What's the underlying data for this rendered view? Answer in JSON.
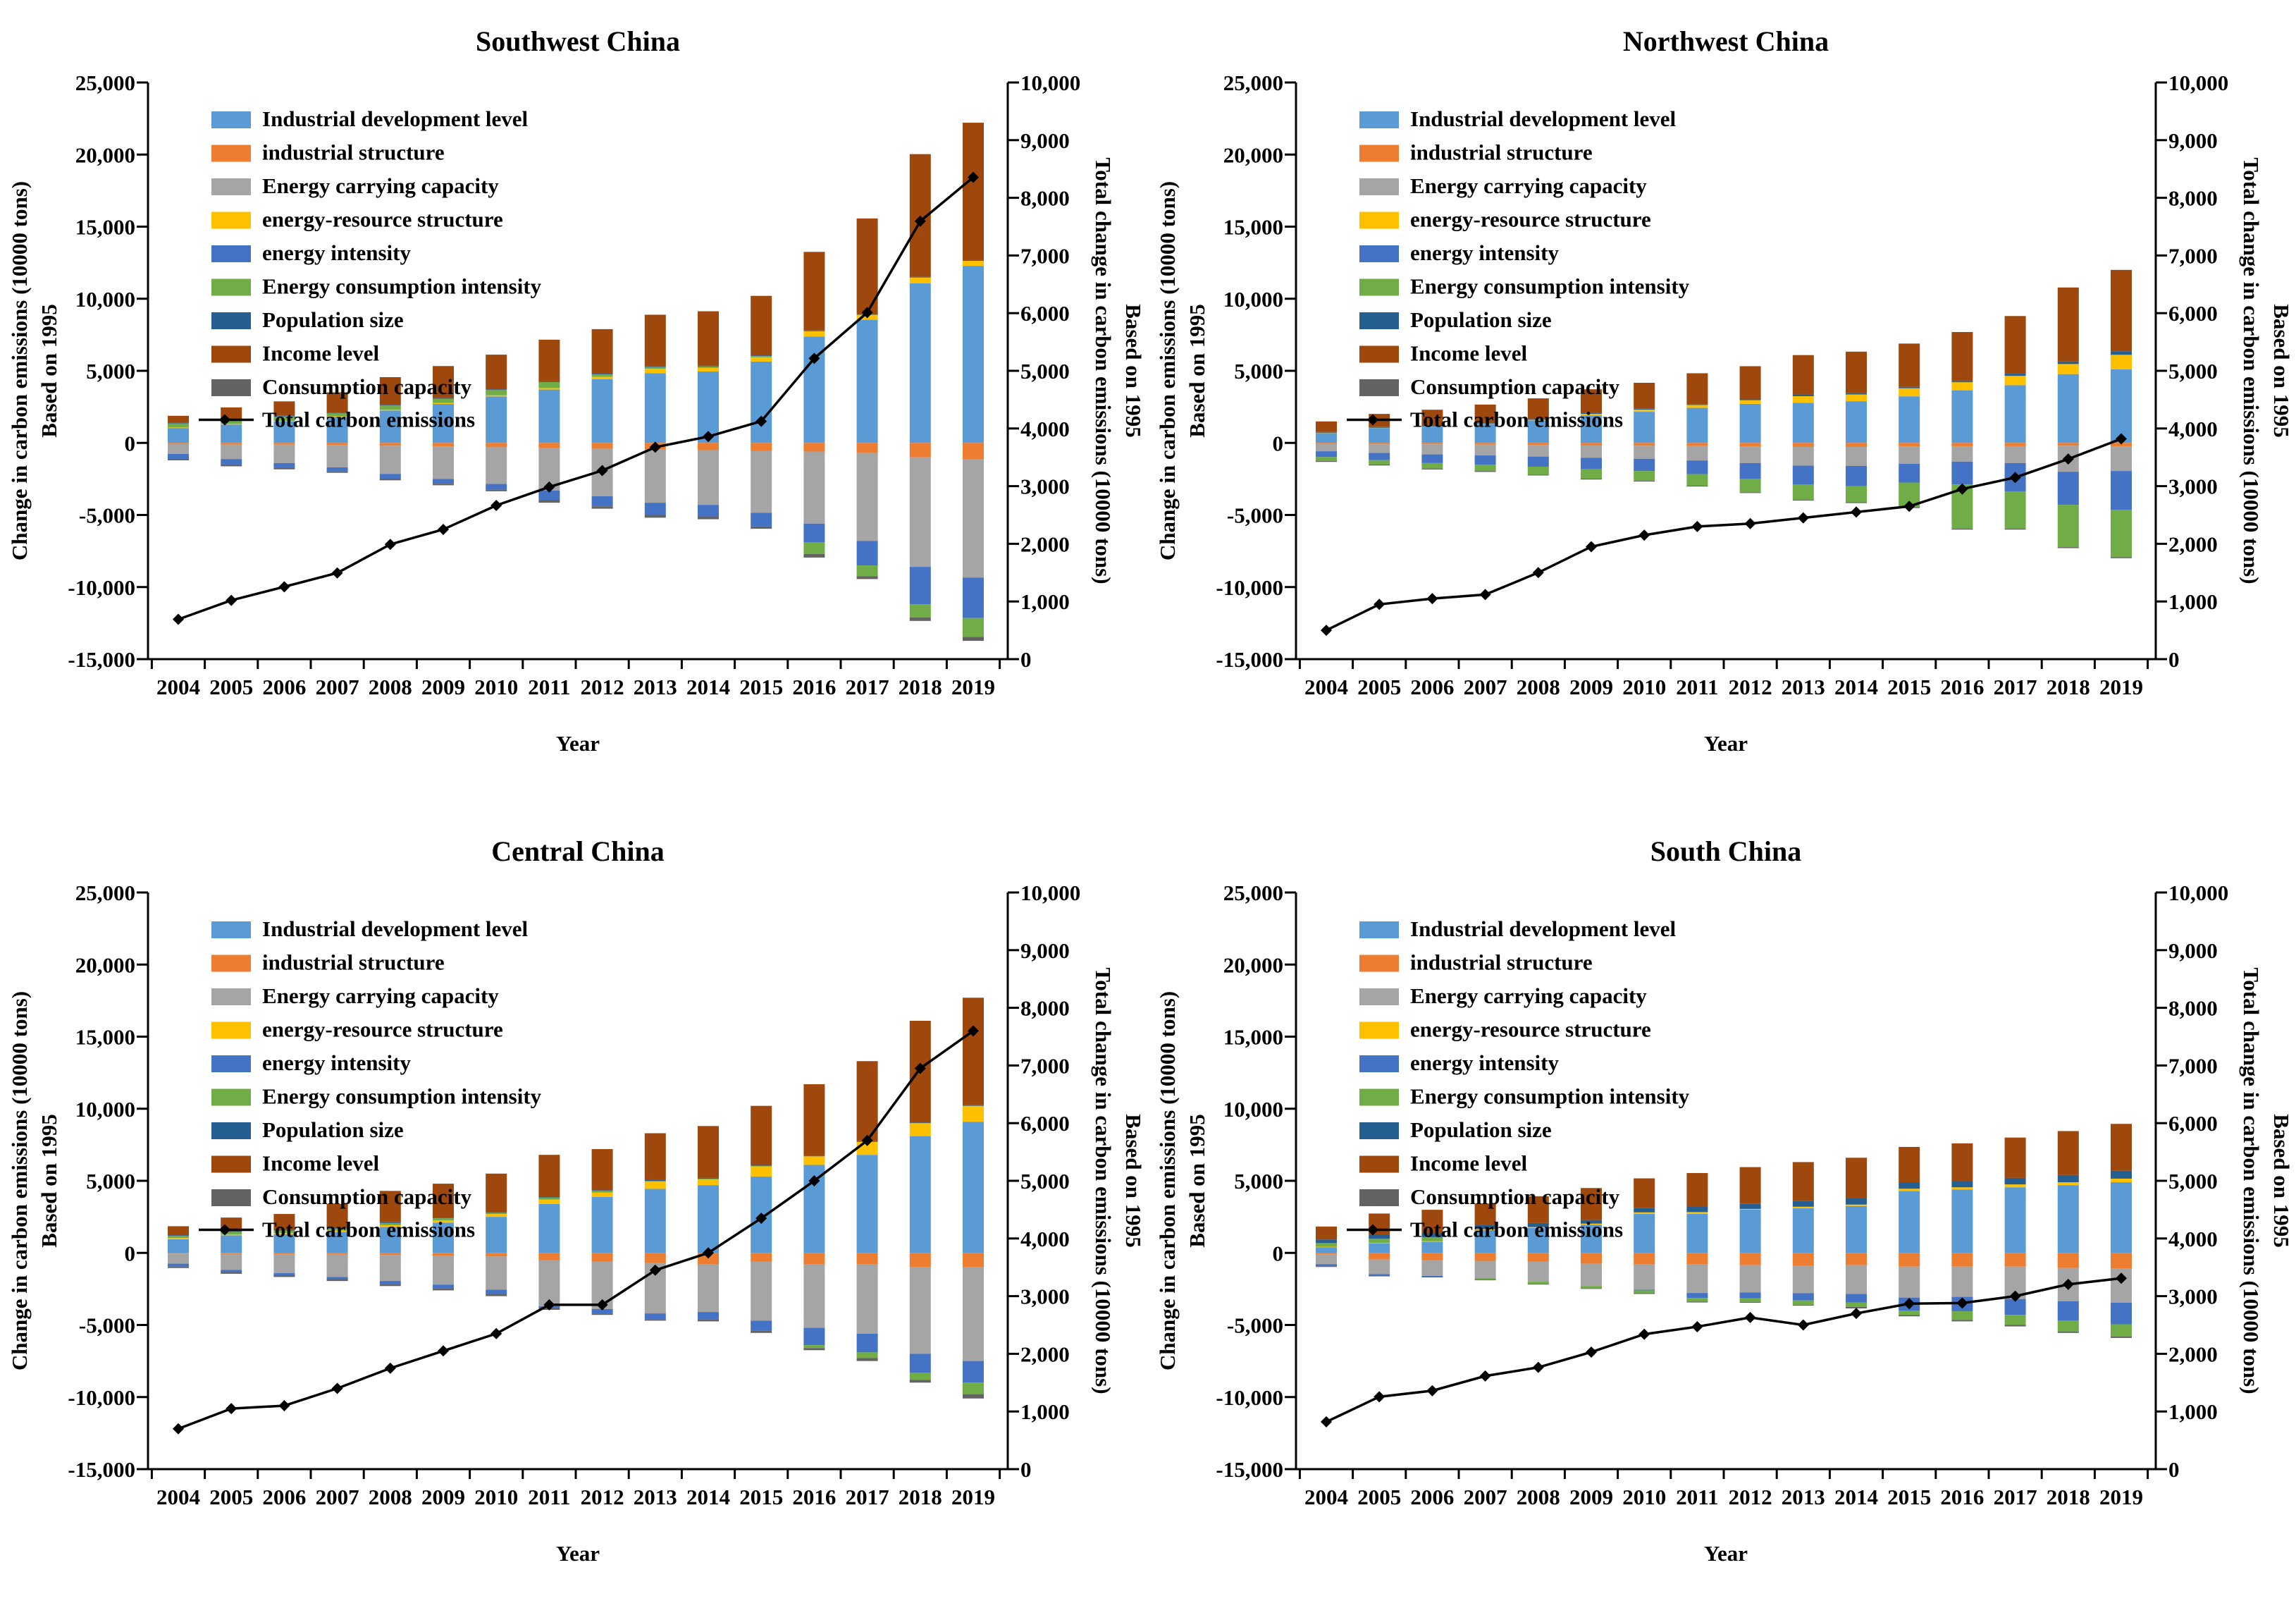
{
  "page": {
    "background": "#ffffff"
  },
  "colors": {
    "industrial_development_level": "#5B9BD5",
    "industrial_structure": "#ED7D31",
    "energy_carrying_capacity": "#A5A5A5",
    "energy_resource_structure": "#FFC000",
    "energy_intensity": "#4472C4",
    "energy_consumption_intensity": "#70AD47",
    "population_size": "#255E91",
    "income_level": "#9E480E",
    "consumption_capacity": "#636363",
    "total_line": "#000000",
    "axis": "#000000"
  },
  "axes": {
    "left_title_line1": "Change in carbon emissions (10000 tons)",
    "left_title_line2": "Based on 1995",
    "right_title_line1": "Total change in carbon emissions (10000 tons)",
    "right_title_line2": "Based on 1995",
    "x_title": "Year",
    "left_min": -15000,
    "left_max": 25000,
    "left_step": 5000,
    "right_min": 0,
    "right_max": 10000,
    "right_step": 1000,
    "left_tick_labels": [
      "25,000",
      "20,000",
      "15,000",
      "10,000",
      "5,000",
      "0",
      "-5,000",
      "-10,000",
      "-15,000"
    ],
    "right_tick_labels": [
      "10,000",
      "9,000",
      "8,000",
      "7,000",
      "6,000",
      "5,000",
      "4,000",
      "3,000",
      "2,000",
      "1,000",
      "0"
    ]
  },
  "legend_line_label": "Total carbon emissions",
  "series_names": [
    "Industrial development level",
    "industrial structure",
    "Energy carrying capacity",
    "energy-resource structure",
    "energy intensity",
    "Energy consumption intensity",
    "Population size",
    "Income level",
    "Consumption capacity"
  ],
  "series_color_keys": [
    "industrial_development_level",
    "industrial_structure",
    "energy_carrying_capacity",
    "energy_resource_structure",
    "energy_intensity",
    "energy_consumption_intensity",
    "population_size",
    "income_level",
    "consumption_capacity"
  ],
  "chart_data": [
    {
      "type": "bar",
      "title": "Southwest China",
      "categories": [
        2004,
        2005,
        2006,
        2007,
        2008,
        2009,
        2010,
        2011,
        2012,
        2013,
        2014,
        2015,
        2016,
        2017,
        2018,
        2019
      ],
      "xlabel": "Year",
      "ylabel_left": "Change in carbon emissions (10000 tons) Based on 1995",
      "ylabel_right": "Total change in carbon emissions (10000 tons) Based on 1995",
      "ylim_left": [
        -15000,
        25000
      ],
      "ylim_right": [
        0,
        10000
      ],
      "grid": false,
      "legend_position": "top-left-inside",
      "series": [
        {
          "name": "Industrial development level",
          "values": [
            1040,
            1280,
            1490,
            1800,
            2250,
            2700,
            3220,
            3700,
            4430,
            4840,
            4950,
            5640,
            7370,
            8540,
            11070,
            12280
          ]
        },
        {
          "name": "industrial structure",
          "values": [
            -60,
            -120,
            -120,
            -150,
            -200,
            -250,
            -300,
            -350,
            -400,
            -450,
            -500,
            -550,
            -600,
            -700,
            -1000,
            -1150
          ]
        },
        {
          "name": "Energy carrying capacity",
          "values": [
            -700,
            -1000,
            -1280,
            -1550,
            -1950,
            -2250,
            -2550,
            -2950,
            -3300,
            -3700,
            -3800,
            -4300,
            -5000,
            -6100,
            -7600,
            -8200
          ]
        },
        {
          "name": "energy-resource structure",
          "values": [
            30,
            40,
            40,
            50,
            60,
            70,
            80,
            100,
            150,
            300,
            250,
            300,
            380,
            350,
            400,
            350
          ]
        },
        {
          "name": "energy intensity",
          "values": [
            -350,
            -380,
            -320,
            -280,
            -330,
            -330,
            -400,
            -650,
            -700,
            -850,
            -800,
            -950,
            -1300,
            -1700,
            -2600,
            -2800
          ]
        },
        {
          "name": "Energy consumption intensity",
          "values": [
            280,
            250,
            300,
            200,
            280,
            300,
            370,
            420,
            170,
            120,
            100,
            80,
            -800,
            -750,
            -900,
            -1300
          ]
        },
        {
          "name": "Population size",
          "values": [
            50,
            50,
            50,
            50,
            50,
            50,
            50,
            50,
            50,
            50,
            50,
            50,
            50,
            50,
            50,
            50
          ]
        },
        {
          "name": "Income level",
          "values": [
            480,
            840,
            1000,
            1410,
            1920,
            2210,
            2400,
            2890,
            3090,
            3580,
            3780,
            4130,
            5450,
            6630,
            8510,
            9530
          ]
        },
        {
          "name": "Consumption capacity",
          "values": [
            -100,
            -125,
            -115,
            -95,
            -115,
            -110,
            -105,
            -200,
            -165,
            -190,
            -195,
            -155,
            -255,
            -195,
            -250,
            -280
          ]
        }
      ],
      "line_series": {
        "name": "Total carbon emissions",
        "axis": "right",
        "values": [
          690,
          1020,
          1255,
          1495,
          1990,
          2250,
          2665,
          2985,
          3270,
          3675,
          3860,
          4125,
          5215,
          6010,
          7595,
          8355
        ]
      }
    },
    {
      "type": "bar",
      "title": "Northwest China",
      "categories": [
        2004,
        2005,
        2006,
        2007,
        2008,
        2009,
        2010,
        2011,
        2012,
        2013,
        2014,
        2015,
        2016,
        2017,
        2018,
        2019
      ],
      "xlabel": "Year",
      "ylabel_left": "Change in carbon emissions (10000 tons) Based on 1995",
      "ylabel_right": "Total change in carbon emissions (10000 tons) Based on 1995",
      "ylim_left": [
        -15000,
        25000
      ],
      "ylim_right": [
        0,
        10000
      ],
      "grid": false,
      "legend_position": "top-left-inside",
      "series": [
        {
          "name": "Industrial development level",
          "values": [
            700,
            1040,
            1110,
            1290,
            1565,
            1910,
            2160,
            2430,
            2710,
            2780,
            2890,
            3230,
            3650,
            4000,
            4770,
            5110
          ]
        },
        {
          "name": "industrial structure",
          "values": [
            -80,
            -100,
            -100,
            -120,
            -150,
            -180,
            -200,
            -220,
            -250,
            -280,
            -280,
            -250,
            -250,
            -230,
            -200,
            -250
          ]
        },
        {
          "name": "Energy carrying capacity",
          "values": [
            -500,
            -600,
            -700,
            -750,
            -800,
            -850,
            -900,
            -1000,
            -1150,
            -1300,
            -1320,
            -1200,
            -1050,
            -1170,
            -1800,
            -1700
          ]
        },
        {
          "name": "energy-resource structure",
          "values": [
            30,
            30,
            40,
            50,
            60,
            100,
            150,
            200,
            250,
            460,
            470,
            560,
            560,
            650,
            700,
            1000
          ]
        },
        {
          "name": "energy intensity",
          "values": [
            -400,
            -500,
            -600,
            -650,
            -700,
            -800,
            -850,
            -950,
            -1100,
            -1310,
            -1400,
            -1300,
            -1580,
            -1960,
            -2300,
            -2700
          ]
        },
        {
          "name": "Energy consumption intensity",
          "values": [
            -280,
            -300,
            -380,
            -430,
            -550,
            -650,
            -670,
            -800,
            -930,
            -1050,
            -1120,
            -1700,
            -3070,
            -2590,
            -2930,
            -3280
          ]
        },
        {
          "name": "Population size",
          "values": [
            30,
            30,
            30,
            30,
            30,
            60,
            60,
            60,
            60,
            100,
            90,
            100,
            90,
            150,
            180,
            250
          ]
        },
        {
          "name": "Income level",
          "values": [
            730,
            910,
            1120,
            1290,
            1435,
            1650,
            1800,
            2140,
            2300,
            2750,
            2880,
            3000,
            3390,
            4000,
            5130,
            5640
          ]
        },
        {
          "name": "Consumption capacity",
          "values": [
            -60,
            -65,
            -65,
            -65,
            -60,
            -60,
            -60,
            -55,
            -50,
            -60,
            -55,
            -70,
            -65,
            -65,
            -70,
            -70
          ]
        }
      ],
      "line_series": {
        "name": "Total carbon emissions",
        "axis": "right",
        "values": [
          500,
          950,
          1050,
          1120,
          1500,
          1950,
          2150,
          2300,
          2350,
          2450,
          2550,
          2650,
          2950,
          3150,
          3470,
          3820
        ]
      }
    },
    {
      "type": "bar",
      "title": "Central China",
      "categories": [
        2004,
        2005,
        2006,
        2007,
        2008,
        2009,
        2010,
        2011,
        2012,
        2013,
        2014,
        2015,
        2016,
        2017,
        2018,
        2019
      ],
      "xlabel": "Year",
      "ylabel_left": "Change in carbon emissions (10000 tons) Based on 1995",
      "ylabel_right": "Total change in carbon emissions (10000 tons) Based on 1995",
      "ylim_left": [
        -15000,
        25000
      ],
      "ylim_right": [
        0,
        10000
      ],
      "grid": false,
      "legend_position": "top-left-inside",
      "series": [
        {
          "name": "Industrial development level",
          "values": [
            950,
            1220,
            1300,
            1450,
            1800,
            2100,
            2500,
            3400,
            3880,
            4440,
            4700,
            5300,
            6100,
            6800,
            8100,
            9100
          ]
        },
        {
          "name": "industrial structure",
          "values": [
            -50,
            -80,
            -100,
            -120,
            -150,
            -200,
            -250,
            -500,
            -600,
            -700,
            -800,
            -600,
            -800,
            -800,
            -1000,
            -1000
          ]
        },
        {
          "name": "Energy carrying capacity",
          "values": [
            -700,
            -1100,
            -1300,
            -1550,
            -1800,
            -2000,
            -2300,
            -3200,
            -3300,
            -3500,
            -3300,
            -4100,
            -4400,
            -4800,
            -6000,
            -6500
          ]
        },
        {
          "name": "energy-resource structure",
          "values": [
            80,
            60,
            80,
            100,
            120,
            150,
            200,
            300,
            300,
            500,
            400,
            700,
            600,
            900,
            900,
            1100
          ]
        },
        {
          "name": "energy intensity",
          "values": [
            -200,
            -150,
            -150,
            -150,
            -200,
            -250,
            -300,
            -150,
            -300,
            -400,
            -500,
            -700,
            -1200,
            -1300,
            -1300,
            -1500
          ]
        },
        {
          "name": "Energy consumption intensity",
          "values": [
            150,
            180,
            170,
            120,
            150,
            150,
            80,
            150,
            120,
            60,
            50,
            50,
            -200,
            -400,
            -500,
            -800
          ]
        },
        {
          "name": "Population size",
          "values": [
            50,
            50,
            50,
            50,
            50,
            50,
            50,
            50,
            50,
            50,
            50,
            50,
            50,
            50,
            50,
            50
          ]
        },
        {
          "name": "Income level",
          "values": [
            620,
            940,
            1100,
            1680,
            2180,
            2350,
            2670,
            2900,
            2850,
            3250,
            3600,
            4100,
            4950,
            5550,
            7050,
            7450
          ]
        },
        {
          "name": "Consumption capacity",
          "values": [
            -100,
            -120,
            -120,
            -130,
            -150,
            -150,
            -150,
            -100,
            -100,
            -100,
            -150,
            -150,
            -150,
            -200,
            -200,
            -300
          ]
        }
      ],
      "line_series": {
        "name": "Total carbon emissions",
        "axis": "right",
        "values": [
          700,
          1050,
          1100,
          1400,
          1750,
          2050,
          2350,
          2850,
          2850,
          3450,
          3750,
          4350,
          5000,
          5700,
          6950,
          7600
        ]
      }
    },
    {
      "type": "bar",
      "title": "South China",
      "categories": [
        2004,
        2005,
        2006,
        2007,
        2008,
        2009,
        2010,
        2011,
        2012,
        2013,
        2014,
        2015,
        2016,
        2017,
        2018,
        2019
      ],
      "xlabel": "Year",
      "ylabel_left": "Change in carbon emissions (10000 tons) Based on 1995",
      "ylabel_right": "Total change in carbon emissions (10000 tons) Based on 1995",
      "ylim_left": [
        -15000,
        25000
      ],
      "ylim_right": [
        0,
        10000
      ],
      "grid": false,
      "legend_position": "top-left-inside",
      "series": [
        {
          "name": "Industrial development level",
          "values": [
            400,
            670,
            770,
            1590,
            1730,
            1950,
            2710,
            2710,
            3000,
            3100,
            3250,
            4300,
            4400,
            4550,
            4700,
            4900
          ]
        },
        {
          "name": "industrial structure",
          "values": [
            -100,
            -460,
            -500,
            -550,
            -600,
            -750,
            -800,
            -800,
            -850,
            -900,
            -850,
            -950,
            -950,
            -950,
            -1050,
            -1100
          ]
        },
        {
          "name": "Energy carrying capacity",
          "values": [
            -680,
            -1020,
            -1100,
            -1200,
            -1400,
            -1550,
            -1750,
            -1980,
            -1900,
            -1900,
            -2000,
            -2150,
            -2100,
            -2250,
            -2300,
            -2350
          ]
        },
        {
          "name": "energy-resource structure",
          "values": [
            30,
            30,
            40,
            50,
            60,
            80,
            100,
            120,
            50,
            100,
            100,
            150,
            150,
            200,
            200,
            250
          ]
        },
        {
          "name": "energy intensity",
          "values": [
            -150,
            -100,
            -50,
            0,
            0,
            0,
            -50,
            -350,
            -400,
            -500,
            -600,
            -900,
            -1000,
            -1100,
            -1350,
            -1500
          ]
        },
        {
          "name": "Energy consumption intensity",
          "values": [
            250,
            280,
            280,
            -100,
            -150,
            -150,
            -200,
            -250,
            -250,
            -300,
            -300,
            -300,
            -600,
            -700,
            -750,
            -850
          ]
        },
        {
          "name": "Population size",
          "values": [
            250,
            280,
            290,
            280,
            280,
            250,
            300,
            360,
            350,
            400,
            450,
            450,
            400,
            450,
            500,
            550
          ]
        },
        {
          "name": "Income level",
          "values": [
            900,
            1470,
            1610,
            1500,
            1860,
            2220,
            2060,
            2350,
            2550,
            2700,
            2800,
            2450,
            2650,
            2800,
            3050,
            3250
          ]
        },
        {
          "name": "Consumption capacity",
          "values": [
            -30,
            -30,
            -30,
            -30,
            -30,
            -30,
            -50,
            -60,
            -60,
            -60,
            -100,
            -100,
            -100,
            -100,
            -100,
            -100
          ]
        }
      ],
      "line_series": {
        "name": "Total carbon emissions",
        "axis": "right",
        "values": [
          820,
          1255,
          1360,
          1615,
          1765,
          2030,
          2340,
          2470,
          2630,
          2500,
          2700,
          2870,
          2880,
          3000,
          3205,
          3310
        ]
      }
    }
  ]
}
